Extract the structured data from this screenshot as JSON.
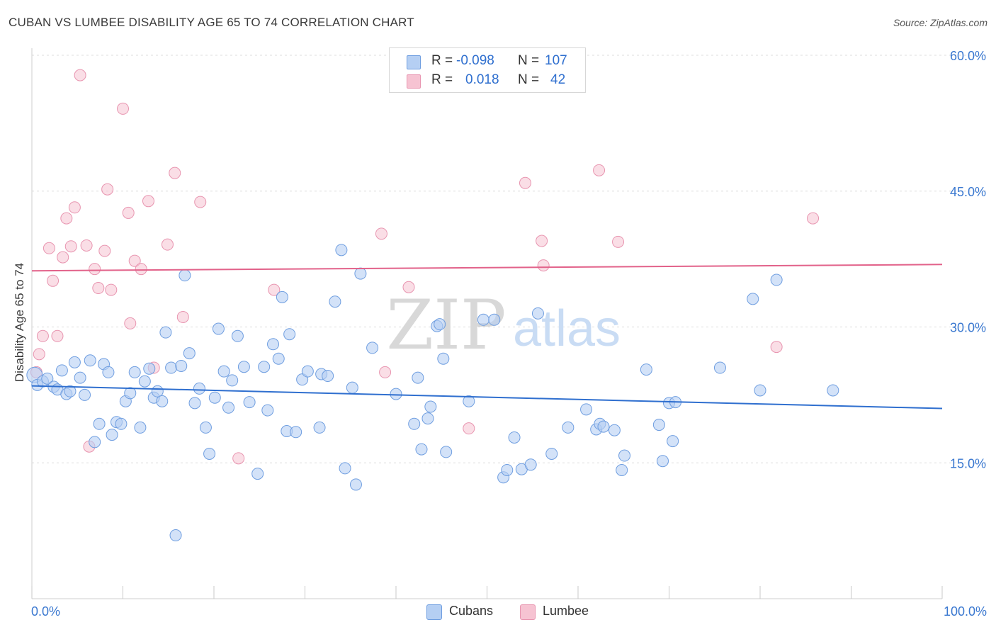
{
  "header": {
    "title": "CUBAN VS LUMBEE DISABILITY AGE 65 TO 74 CORRELATION CHART",
    "source": "Source: ZipAtlas.com"
  },
  "watermark": {
    "zip": "ZIP",
    "atlas": "atlas"
  },
  "legend": {
    "rows": [
      {
        "r_label": "R =",
        "r_value": "-0.098",
        "n_label": "N =",
        "n_value": "107"
      },
      {
        "r_label": "R =",
        "r_value": "0.018",
        "n_label": "N =",
        "n_value": "42"
      }
    ]
  },
  "colors": {
    "cubans_fill": "#b5cff3",
    "cubans_stroke": "#6f9ee0",
    "cubans_line": "#2f6fcf",
    "lumbee_fill": "#f6c3d2",
    "lumbee_stroke": "#e895b0",
    "lumbee_line": "#e2628a",
    "axis_text": "#3a78d0",
    "grid": "#dcdcdc"
  },
  "chart_data": {
    "type": "scatter",
    "title": "CUBAN VS LUMBEE DISABILITY AGE 65 TO 74 CORRELATION CHART",
    "xlabel": "",
    "ylabel": "Disability Age 65 to 74",
    "xlim": [
      0,
      100
    ],
    "ylim": [
      0,
      60
    ],
    "x_tick_labels": [
      "0.0%",
      "100.0%"
    ],
    "y_ticks": [
      15,
      30,
      45,
      60
    ],
    "y_tick_labels": [
      "15.0%",
      "30.0%",
      "45.0%",
      "60.0%"
    ],
    "grid": "horizontal dashed",
    "legend_position": "top-center",
    "series": [
      {
        "name": "Cubans",
        "r": -0.098,
        "n": 107,
        "trend": {
          "x": [
            0,
            100
          ],
          "y": [
            23.5,
            21.0
          ]
        },
        "points": [
          [
            0.3,
            24.7
          ],
          [
            0.6,
            23.6
          ],
          [
            1.2,
            24.0
          ],
          [
            1.7,
            24.3
          ],
          [
            2.4,
            23.4
          ],
          [
            2.8,
            23.1
          ],
          [
            3.3,
            25.2
          ],
          [
            3.8,
            22.6
          ],
          [
            4.2,
            22.9
          ],
          [
            4.7,
            26.1
          ],
          [
            5.3,
            24.4
          ],
          [
            5.8,
            22.5
          ],
          [
            6.4,
            26.3
          ],
          [
            6.9,
            17.3
          ],
          [
            7.4,
            19.3
          ],
          [
            7.9,
            25.9
          ],
          [
            8.4,
            25.0
          ],
          [
            8.8,
            18.1
          ],
          [
            9.3,
            19.5
          ],
          [
            9.8,
            19.3
          ],
          [
            10.3,
            21.8
          ],
          [
            10.8,
            22.7
          ],
          [
            11.3,
            25.0
          ],
          [
            11.9,
            18.9
          ],
          [
            12.4,
            24.0
          ],
          [
            12.9,
            25.4
          ],
          [
            13.4,
            22.2
          ],
          [
            13.8,
            22.9
          ],
          [
            14.3,
            21.8
          ],
          [
            14.7,
            29.4
          ],
          [
            15.3,
            25.5
          ],
          [
            15.8,
            7.0
          ],
          [
            16.4,
            25.7
          ],
          [
            16.8,
            35.7
          ],
          [
            17.3,
            27.1
          ],
          [
            17.9,
            21.6
          ],
          [
            18.4,
            23.2
          ],
          [
            19.1,
            18.9
          ],
          [
            19.5,
            16.0
          ],
          [
            20.1,
            22.2
          ],
          [
            20.5,
            29.8
          ],
          [
            21.1,
            25.1
          ],
          [
            21.6,
            21.1
          ],
          [
            22.0,
            24.1
          ],
          [
            22.6,
            29.0
          ],
          [
            23.3,
            25.6
          ],
          [
            23.9,
            21.7
          ],
          [
            24.8,
            13.8
          ],
          [
            25.5,
            25.6
          ],
          [
            25.9,
            20.8
          ],
          [
            26.5,
            28.1
          ],
          [
            27.1,
            26.5
          ],
          [
            27.5,
            33.3
          ],
          [
            28.0,
            18.5
          ],
          [
            28.3,
            29.2
          ],
          [
            29.0,
            18.4
          ],
          [
            29.7,
            24.2
          ],
          [
            30.3,
            25.1
          ],
          [
            31.6,
            18.9
          ],
          [
            31.8,
            24.8
          ],
          [
            32.5,
            24.6
          ],
          [
            33.3,
            32.8
          ],
          [
            34.0,
            38.5
          ],
          [
            34.4,
            14.4
          ],
          [
            35.2,
            23.3
          ],
          [
            35.6,
            12.6
          ],
          [
            36.1,
            35.9
          ],
          [
            37.4,
            27.7
          ],
          [
            40.0,
            22.6
          ],
          [
            42.0,
            19.3
          ],
          [
            42.4,
            24.4
          ],
          [
            42.8,
            16.5
          ],
          [
            43.5,
            19.9
          ],
          [
            43.8,
            21.2
          ],
          [
            44.5,
            30.1
          ],
          [
            44.8,
            30.3
          ],
          [
            45.2,
            26.5
          ],
          [
            45.5,
            16.2
          ],
          [
            48.0,
            21.8
          ],
          [
            49.6,
            30.8
          ],
          [
            50.8,
            30.8
          ],
          [
            51.8,
            13.4
          ],
          [
            52.2,
            14.2
          ],
          [
            53.0,
            17.8
          ],
          [
            53.8,
            14.3
          ],
          [
            54.8,
            14.8
          ],
          [
            55.6,
            31.5
          ],
          [
            57.1,
            16.0
          ],
          [
            58.9,
            18.9
          ],
          [
            60.9,
            20.9
          ],
          [
            62.0,
            18.7
          ],
          [
            62.4,
            19.3
          ],
          [
            62.8,
            19.0
          ],
          [
            64.0,
            18.6
          ],
          [
            64.8,
            14.2
          ],
          [
            65.1,
            15.8
          ],
          [
            67.5,
            25.3
          ],
          [
            68.9,
            19.2
          ],
          [
            69.3,
            15.2
          ],
          [
            70.0,
            21.6
          ],
          [
            70.4,
            17.4
          ],
          [
            70.7,
            21.7
          ],
          [
            75.6,
            25.5
          ],
          [
            79.2,
            33.1
          ],
          [
            80.0,
            23.0
          ],
          [
            81.8,
            35.2
          ],
          [
            88.0,
            23.0
          ]
        ]
      },
      {
        "name": "Lumbee",
        "r": 0.018,
        "n": 42,
        "trend": {
          "x": [
            0,
            100
          ],
          "y": [
            36.2,
            36.9
          ]
        },
        "points": [
          [
            0.5,
            25.0
          ],
          [
            0.8,
            27.0
          ],
          [
            1.2,
            29.0
          ],
          [
            1.9,
            38.7
          ],
          [
            2.3,
            35.1
          ],
          [
            2.8,
            29.0
          ],
          [
            3.4,
            37.7
          ],
          [
            3.8,
            42.0
          ],
          [
            4.3,
            38.9
          ],
          [
            4.7,
            43.2
          ],
          [
            5.3,
            57.8
          ],
          [
            6.0,
            39.0
          ],
          [
            6.3,
            16.8
          ],
          [
            6.9,
            36.4
          ],
          [
            7.3,
            34.3
          ],
          [
            8.0,
            38.4
          ],
          [
            8.3,
            45.2
          ],
          [
            8.7,
            34.1
          ],
          [
            10.0,
            54.1
          ],
          [
            10.6,
            42.6
          ],
          [
            10.8,
            30.4
          ],
          [
            11.3,
            37.3
          ],
          [
            12.0,
            36.4
          ],
          [
            12.8,
            43.9
          ],
          [
            13.4,
            25.5
          ],
          [
            14.9,
            39.1
          ],
          [
            15.7,
            47.0
          ],
          [
            16.6,
            31.1
          ],
          [
            18.5,
            43.8
          ],
          [
            22.7,
            15.5
          ],
          [
            26.6,
            34.1
          ],
          [
            38.4,
            40.3
          ],
          [
            38.8,
            25.0
          ],
          [
            41.4,
            34.4
          ],
          [
            48.0,
            18.8
          ],
          [
            54.2,
            45.9
          ],
          [
            56.0,
            39.5
          ],
          [
            56.2,
            36.8
          ],
          [
            62.3,
            47.3
          ],
          [
            64.4,
            39.4
          ],
          [
            81.8,
            27.8
          ],
          [
            85.8,
            42.0
          ]
        ]
      }
    ]
  }
}
